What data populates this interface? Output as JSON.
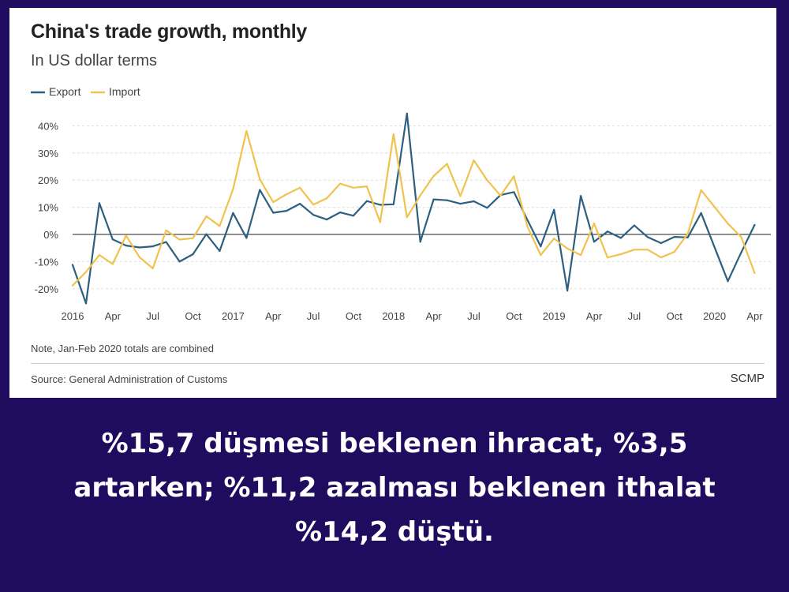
{
  "chart_data": {
    "type": "line",
    "title": "China's trade growth, monthly",
    "subtitle": "In US dollar terms",
    "x_tick_labels": [
      "2016",
      "Apr",
      "Jul",
      "Oct",
      "2017",
      "Apr",
      "Jul",
      "Oct",
      "2018",
      "Apr",
      "Jul",
      "Oct",
      "2019",
      "Apr",
      "Jul",
      "Oct",
      "2020",
      "Apr"
    ],
    "y_tick_labels": [
      "40%",
      "30%",
      "20%",
      "10%",
      "0%",
      "-10%",
      "-20%"
    ],
    "y_ticks": [
      40,
      30,
      20,
      10,
      0,
      -10,
      -20
    ],
    "ylim": [
      -26,
      46
    ],
    "x_start": "2016-01",
    "x_end": "2020-04",
    "grid": true,
    "legend_position": "top-left",
    "colors": {
      "Export": "#2c5f80",
      "Import": "#f0c24f",
      "zero_line": "#222222",
      "grid": "#dddddd"
    },
    "series": [
      {
        "name": "Export",
        "points": [
          {
            "x": "2016-01",
            "y": -11.2
          },
          {
            "x": "2016-02",
            "y": -25.4
          },
          {
            "x": "2016-03",
            "y": 11.5
          },
          {
            "x": "2016-04",
            "y": -1.8
          },
          {
            "x": "2016-05",
            "y": -4.1
          },
          {
            "x": "2016-06",
            "y": -4.8
          },
          {
            "x": "2016-07",
            "y": -4.4
          },
          {
            "x": "2016-08",
            "y": -2.8
          },
          {
            "x": "2016-09",
            "y": -10.0
          },
          {
            "x": "2016-10",
            "y": -7.3
          },
          {
            "x": "2016-11",
            "y": 0.1
          },
          {
            "x": "2016-12",
            "y": -6.1
          },
          {
            "x": "2017-01",
            "y": 7.9
          },
          {
            "x": "2017-02",
            "y": -1.3
          },
          {
            "x": "2017-03",
            "y": 16.4
          },
          {
            "x": "2017-04",
            "y": 8.0
          },
          {
            "x": "2017-05",
            "y": 8.7
          },
          {
            "x": "2017-06",
            "y": 11.3
          },
          {
            "x": "2017-07",
            "y": 7.2
          },
          {
            "x": "2017-08",
            "y": 5.5
          },
          {
            "x": "2017-09",
            "y": 8.1
          },
          {
            "x": "2017-10",
            "y": 6.9
          },
          {
            "x": "2017-11",
            "y": 12.3
          },
          {
            "x": "2017-12",
            "y": 10.9
          },
          {
            "x": "2018-01",
            "y": 11.1
          },
          {
            "x": "2018-02",
            "y": 44.5
          },
          {
            "x": "2018-03",
            "y": -2.7
          },
          {
            "x": "2018-04",
            "y": 12.9
          },
          {
            "x": "2018-05",
            "y": 12.6
          },
          {
            "x": "2018-06",
            "y": 11.3
          },
          {
            "x": "2018-07",
            "y": 12.2
          },
          {
            "x": "2018-08",
            "y": 9.8
          },
          {
            "x": "2018-09",
            "y": 14.5
          },
          {
            "x": "2018-10",
            "y": 15.6
          },
          {
            "x": "2018-11",
            "y": 5.4
          },
          {
            "x": "2018-12",
            "y": -4.4
          },
          {
            "x": "2019-01",
            "y": 9.1
          },
          {
            "x": "2019-02",
            "y": -20.7
          },
          {
            "x": "2019-03",
            "y": 14.2
          },
          {
            "x": "2019-04",
            "y": -2.7
          },
          {
            "x": "2019-05",
            "y": 1.1
          },
          {
            "x": "2019-06",
            "y": -1.3
          },
          {
            "x": "2019-07",
            "y": 3.3
          },
          {
            "x": "2019-08",
            "y": -1.0
          },
          {
            "x": "2019-09",
            "y": -3.2
          },
          {
            "x": "2019-10",
            "y": -0.9
          },
          {
            "x": "2019-11",
            "y": -1.1
          },
          {
            "x": "2019-12",
            "y": 7.9
          },
          {
            "x": "2020-02",
            "y": -17.2
          },
          {
            "x": "2020-03",
            "y": -6.6
          },
          {
            "x": "2020-04",
            "y": 3.5
          }
        ]
      },
      {
        "name": "Import",
        "points": [
          {
            "x": "2016-01",
            "y": -18.8
          },
          {
            "x": "2016-02",
            "y": -13.8
          },
          {
            "x": "2016-03",
            "y": -7.6
          },
          {
            "x": "2016-04",
            "y": -10.9
          },
          {
            "x": "2016-05",
            "y": -0.4
          },
          {
            "x": "2016-06",
            "y": -8.4
          },
          {
            "x": "2016-07",
            "y": -12.5
          },
          {
            "x": "2016-08",
            "y": 1.5
          },
          {
            "x": "2016-09",
            "y": -1.9
          },
          {
            "x": "2016-10",
            "y": -1.4
          },
          {
            "x": "2016-11",
            "y": 6.7
          },
          {
            "x": "2016-12",
            "y": 3.1
          },
          {
            "x": "2017-01",
            "y": 16.7
          },
          {
            "x": "2017-02",
            "y": 38.1
          },
          {
            "x": "2017-03",
            "y": 20.3
          },
          {
            "x": "2017-04",
            "y": 11.9
          },
          {
            "x": "2017-05",
            "y": 14.8
          },
          {
            "x": "2017-06",
            "y": 17.2
          },
          {
            "x": "2017-07",
            "y": 11.0
          },
          {
            "x": "2017-08",
            "y": 13.3
          },
          {
            "x": "2017-09",
            "y": 18.7
          },
          {
            "x": "2017-10",
            "y": 17.2
          },
          {
            "x": "2017-11",
            "y": 17.7
          },
          {
            "x": "2017-12",
            "y": 4.5
          },
          {
            "x": "2018-01",
            "y": 36.9
          },
          {
            "x": "2018-02",
            "y": 6.3
          },
          {
            "x": "2018-03",
            "y": 14.4
          },
          {
            "x": "2018-04",
            "y": 21.5
          },
          {
            "x": "2018-05",
            "y": 26.0
          },
          {
            "x": "2018-06",
            "y": 14.1
          },
          {
            "x": "2018-07",
            "y": 27.3
          },
          {
            "x": "2018-08",
            "y": 20.0
          },
          {
            "x": "2018-09",
            "y": 14.3
          },
          {
            "x": "2018-10",
            "y": 21.4
          },
          {
            "x": "2018-11",
            "y": 3.0
          },
          {
            "x": "2018-12",
            "y": -7.6
          },
          {
            "x": "2019-01",
            "y": -1.5
          },
          {
            "x": "2019-02",
            "y": -5.2
          },
          {
            "x": "2019-03",
            "y": -7.6
          },
          {
            "x": "2019-04",
            "y": 4.0
          },
          {
            "x": "2019-05",
            "y": -8.5
          },
          {
            "x": "2019-06",
            "y": -7.3
          },
          {
            "x": "2019-07",
            "y": -5.6
          },
          {
            "x": "2019-08",
            "y": -5.6
          },
          {
            "x": "2019-09",
            "y": -8.5
          },
          {
            "x": "2019-10",
            "y": -6.4
          },
          {
            "x": "2019-11",
            "y": 0.3
          },
          {
            "x": "2019-12",
            "y": 16.3
          },
          {
            "x": "2020-02",
            "y": 4.0
          },
          {
            "x": "2020-03",
            "y": -1.0
          },
          {
            "x": "2020-04",
            "y": -14.2
          }
        ]
      }
    ]
  },
  "legend": {
    "export_label": "Export",
    "import_label": "Import"
  },
  "note": "Note, Jan-Feb 2020 totals are combined",
  "source": "Source: General Administration of Customs",
  "brand": "SCMP",
  "caption_lines": [
    "%15,7 düşmesi beklenen ihracat, %3,5",
    "artarken; %11,2 azalması beklenen ithalat",
    "%14,2 düştü."
  ],
  "colors": {
    "background": "#200c5e",
    "card": "#ffffff",
    "caption_text": "#ffffff"
  }
}
